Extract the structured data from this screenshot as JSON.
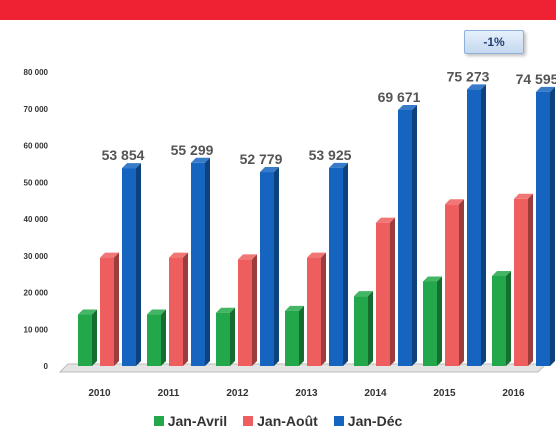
{
  "badge": {
    "label": "-1%"
  },
  "chart_data": {
    "type": "bar",
    "categories": [
      "2010",
      "2011",
      "2012",
      "2013",
      "2014",
      "2015",
      "2016"
    ],
    "series": [
      {
        "name": "Jan-Avril",
        "color": "#22a84a",
        "values": [
          14000,
          14000,
          14500,
          15000,
          19000,
          23000,
          24500
        ]
      },
      {
        "name": "Jan-Août",
        "color": "#ee5e5e",
        "values": [
          29500,
          29500,
          29000,
          29500,
          39000,
          44000,
          45500
        ]
      },
      {
        "name": "Jan-Déc",
        "color": "#1565c0",
        "values": [
          53854,
          55299,
          52779,
          53925,
          69671,
          75273,
          74595
        ],
        "data_labels": [
          "53 854",
          "55 299",
          "52 779",
          "53 925",
          "69 671",
          "75 273",
          "74 595"
        ]
      }
    ],
    "y_ticks": [
      "0",
      "10 000",
      "20 000",
      "30 000",
      "40 000",
      "50 000",
      "60 000",
      "70 000",
      "80 000"
    ],
    "ylim": [
      0,
      80000
    ],
    "grid": false,
    "legend_position": "bottom",
    "xlabel": "",
    "ylabel": "",
    "title": ""
  }
}
